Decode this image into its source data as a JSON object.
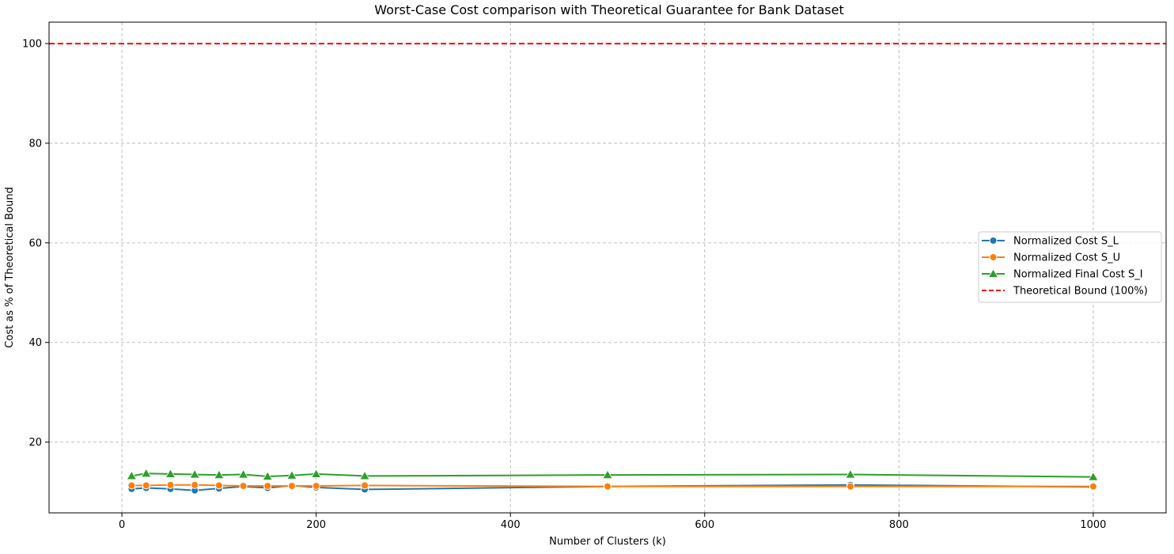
{
  "chart_data": {
    "type": "line",
    "title": "Worst-Case Cost comparison with Theoretical Guarantee for Bank Dataset",
    "xlabel": "Number of Clusters (k)",
    "ylabel": "Cost as % of Theoretical Bound",
    "xlim": [
      -75,
      1075
    ],
    "ylim": [
      5.8,
      104.3
    ],
    "xticks": [
      0,
      200,
      400,
      600,
      800,
      1000
    ],
    "yticks": [
      20,
      40,
      60,
      80,
      100
    ],
    "grid": true,
    "legend_position": "center-right",
    "x": [
      10,
      25,
      50,
      75,
      100,
      125,
      150,
      175,
      200,
      250,
      500,
      750,
      1000
    ],
    "series": [
      {
        "name": "Normalized Cost S_L",
        "color": "#1f77b4",
        "marker": "circle",
        "values": [
          10.6,
          10.8,
          10.6,
          10.3,
          10.7,
          11.1,
          10.8,
          11.3,
          10.9,
          10.5,
          11.1,
          11.4,
          11.0
        ]
      },
      {
        "name": "Normalized Cost S_U",
        "color": "#ff7f0e",
        "marker": "circle",
        "values": [
          11.3,
          11.3,
          11.4,
          11.4,
          11.3,
          11.2,
          11.2,
          11.2,
          11.2,
          11.3,
          11.1,
          11.1,
          11.1
        ]
      },
      {
        "name": "Normalized Final Cost S_I",
        "color": "#2ca02c",
        "marker": "triangle",
        "values": [
          13.2,
          13.7,
          13.6,
          13.5,
          13.4,
          13.5,
          13.1,
          13.3,
          13.6,
          13.2,
          13.4,
          13.5,
          13.0
        ]
      }
    ],
    "reference_line": {
      "name": "Theoretical Bound (100%)",
      "value": 100,
      "color": "#ff0000",
      "style": "dashed"
    }
  }
}
